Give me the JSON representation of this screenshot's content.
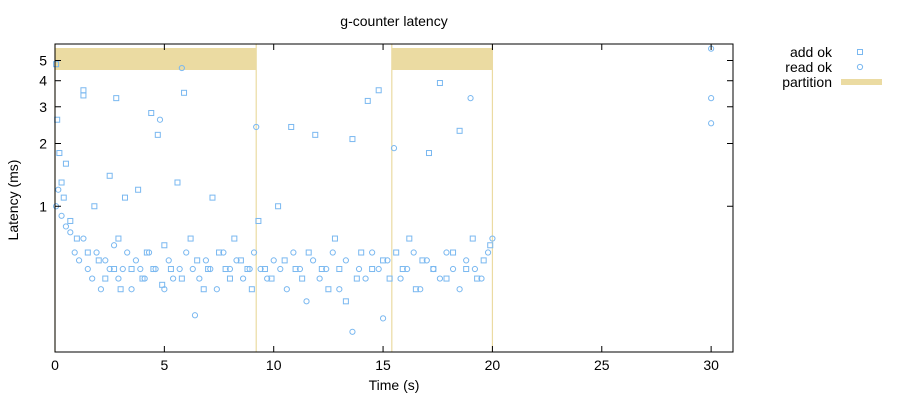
{
  "chart_data": {
    "type": "scatter",
    "title": "g-counter latency",
    "xlabel": "Time (s)",
    "ylabel": "Latency (ms)",
    "xlim": [
      0,
      31
    ],
    "ylim": [
      0.2,
      6
    ],
    "y_scale": "log",
    "grid": false,
    "legend_position": "top-right",
    "x_ticks": [
      0,
      5,
      10,
      15,
      20,
      25,
      30
    ],
    "y_ticks": [
      1,
      2,
      3,
      4,
      5
    ],
    "partitions": [
      [
        0,
        9.2
      ],
      [
        15.4,
        20
      ]
    ],
    "series": [
      {
        "name": "add ok",
        "marker": "square",
        "color": "#7ab8f0",
        "points": [
          [
            0.05,
            4.8
          ],
          [
            0.1,
            2.6
          ],
          [
            0.2,
            1.8
          ],
          [
            0.3,
            1.3
          ],
          [
            0.4,
            1.1
          ],
          [
            0.5,
            1.6
          ],
          [
            0.7,
            0.85
          ],
          [
            1.0,
            0.7
          ],
          [
            1.3,
            3.6
          ],
          [
            1.3,
            3.4
          ],
          [
            1.5,
            0.6
          ],
          [
            1.8,
            1.0
          ],
          [
            2.0,
            0.55
          ],
          [
            2.3,
            0.45
          ],
          [
            2.5,
            1.4
          ],
          [
            2.7,
            0.5
          ],
          [
            2.8,
            3.3
          ],
          [
            2.9,
            0.7
          ],
          [
            3.0,
            0.4
          ],
          [
            3.2,
            1.1
          ],
          [
            3.5,
            0.5
          ],
          [
            3.8,
            1.2
          ],
          [
            4.0,
            0.45
          ],
          [
            4.2,
            0.6
          ],
          [
            4.4,
            2.8
          ],
          [
            4.5,
            0.5
          ],
          [
            4.7,
            2.2
          ],
          [
            4.9,
            0.42
          ],
          [
            5.0,
            0.65
          ],
          [
            5.3,
            0.5
          ],
          [
            5.6,
            1.3
          ],
          [
            5.8,
            0.45
          ],
          [
            5.9,
            3.5
          ],
          [
            6.2,
            0.7
          ],
          [
            6.5,
            0.55
          ],
          [
            6.8,
            0.4
          ],
          [
            7.0,
            0.5
          ],
          [
            7.2,
            1.1
          ],
          [
            7.5,
            0.6
          ],
          [
            7.8,
            0.5
          ],
          [
            8.0,
            0.45
          ],
          [
            8.2,
            0.7
          ],
          [
            8.5,
            0.55
          ],
          [
            8.8,
            0.5
          ],
          [
            9.0,
            0.4
          ],
          [
            9.3,
            0.85
          ],
          [
            9.6,
            0.5
          ],
          [
            9.9,
            0.45
          ],
          [
            10.2,
            1.0
          ],
          [
            10.5,
            0.55
          ],
          [
            10.8,
            2.4
          ],
          [
            11.0,
            0.5
          ],
          [
            11.3,
            0.45
          ],
          [
            11.6,
            0.6
          ],
          [
            11.9,
            2.2
          ],
          [
            12.2,
            0.5
          ],
          [
            12.5,
            0.4
          ],
          [
            12.8,
            0.7
          ],
          [
            13.0,
            0.5
          ],
          [
            13.3,
            0.35
          ],
          [
            13.6,
            2.1
          ],
          [
            13.8,
            0.45
          ],
          [
            14.0,
            0.6
          ],
          [
            14.3,
            3.2
          ],
          [
            14.5,
            0.5
          ],
          [
            14.8,
            3.6
          ],
          [
            15.0,
            0.55
          ],
          [
            15.3,
            0.45
          ],
          [
            15.6,
            0.6
          ],
          [
            15.9,
            0.5
          ],
          [
            16.2,
            0.7
          ],
          [
            16.5,
            0.4
          ],
          [
            16.8,
            0.55
          ],
          [
            17.1,
            1.8
          ],
          [
            17.3,
            0.5
          ],
          [
            17.6,
            3.9
          ],
          [
            17.9,
            0.45
          ],
          [
            18.2,
            0.6
          ],
          [
            18.5,
            2.3
          ],
          [
            18.8,
            0.5
          ],
          [
            19.1,
            0.7
          ],
          [
            19.3,
            0.45
          ],
          [
            19.6,
            0.55
          ],
          [
            19.9,
            0.65
          ]
        ]
      },
      {
        "name": "read ok",
        "marker": "circle",
        "color": "#7ab8f0",
        "points": [
          [
            0.05,
            1.0
          ],
          [
            0.15,
            1.2
          ],
          [
            0.3,
            0.9
          ],
          [
            0.5,
            0.8
          ],
          [
            0.7,
            0.75
          ],
          [
            0.9,
            0.6
          ],
          [
            1.1,
            0.55
          ],
          [
            1.3,
            0.7
          ],
          [
            1.5,
            0.5
          ],
          [
            1.7,
            0.45
          ],
          [
            1.9,
            0.6
          ],
          [
            2.1,
            0.4
          ],
          [
            2.3,
            0.55
          ],
          [
            2.5,
            0.5
          ],
          [
            2.7,
            0.65
          ],
          [
            2.9,
            0.45
          ],
          [
            3.1,
            0.5
          ],
          [
            3.3,
            0.6
          ],
          [
            3.5,
            0.4
          ],
          [
            3.7,
            0.55
          ],
          [
            3.9,
            0.5
          ],
          [
            4.1,
            0.45
          ],
          [
            4.3,
            0.6
          ],
          [
            4.6,
            0.5
          ],
          [
            4.8,
            2.6
          ],
          [
            5.0,
            0.4
          ],
          [
            5.2,
            0.55
          ],
          [
            5.4,
            0.45
          ],
          [
            5.7,
            0.5
          ],
          [
            5.8,
            4.6
          ],
          [
            6.0,
            0.6
          ],
          [
            6.3,
            0.5
          ],
          [
            6.4,
            0.3
          ],
          [
            6.6,
            0.45
          ],
          [
            6.9,
            0.55
          ],
          [
            7.1,
            0.5
          ],
          [
            7.4,
            0.4
          ],
          [
            7.7,
            0.6
          ],
          [
            8.0,
            0.5
          ],
          [
            8.3,
            0.55
          ],
          [
            8.6,
            0.45
          ],
          [
            8.9,
            0.5
          ],
          [
            9.1,
            0.6
          ],
          [
            9.2,
            2.4
          ],
          [
            9.4,
            0.5
          ],
          [
            9.7,
            0.45
          ],
          [
            10.0,
            0.55
          ],
          [
            10.3,
            0.5
          ],
          [
            10.6,
            0.4
          ],
          [
            10.9,
            0.6
          ],
          [
            11.2,
            0.5
          ],
          [
            11.5,
            0.35
          ],
          [
            11.8,
            0.55
          ],
          [
            12.1,
            0.45
          ],
          [
            12.4,
            0.5
          ],
          [
            12.7,
            0.6
          ],
          [
            13.0,
            0.4
          ],
          [
            13.3,
            0.55
          ],
          [
            13.6,
            0.25
          ],
          [
            13.9,
            0.5
          ],
          [
            14.2,
            0.45
          ],
          [
            14.5,
            0.6
          ],
          [
            14.8,
            0.5
          ],
          [
            15.0,
            0.29
          ],
          [
            15.2,
            0.55
          ],
          [
            15.5,
            1.9
          ],
          [
            15.8,
            0.45
          ],
          [
            16.1,
            0.5
          ],
          [
            16.4,
            0.6
          ],
          [
            16.7,
            0.4
          ],
          [
            17.0,
            0.55
          ],
          [
            17.3,
            0.5
          ],
          [
            17.6,
            0.45
          ],
          [
            17.9,
            0.6
          ],
          [
            18.2,
            0.5
          ],
          [
            18.5,
            0.4
          ],
          [
            18.8,
            0.55
          ],
          [
            19.0,
            3.3
          ],
          [
            19.2,
            0.5
          ],
          [
            19.5,
            0.45
          ],
          [
            19.8,
            0.6
          ],
          [
            20.0,
            0.7
          ],
          [
            30.0,
            5.7
          ],
          [
            30.0,
            3.3
          ],
          [
            30.0,
            2.5
          ]
        ]
      },
      {
        "name": "partition",
        "marker": "bar",
        "color": "#ebdba2",
        "points": []
      }
    ]
  }
}
